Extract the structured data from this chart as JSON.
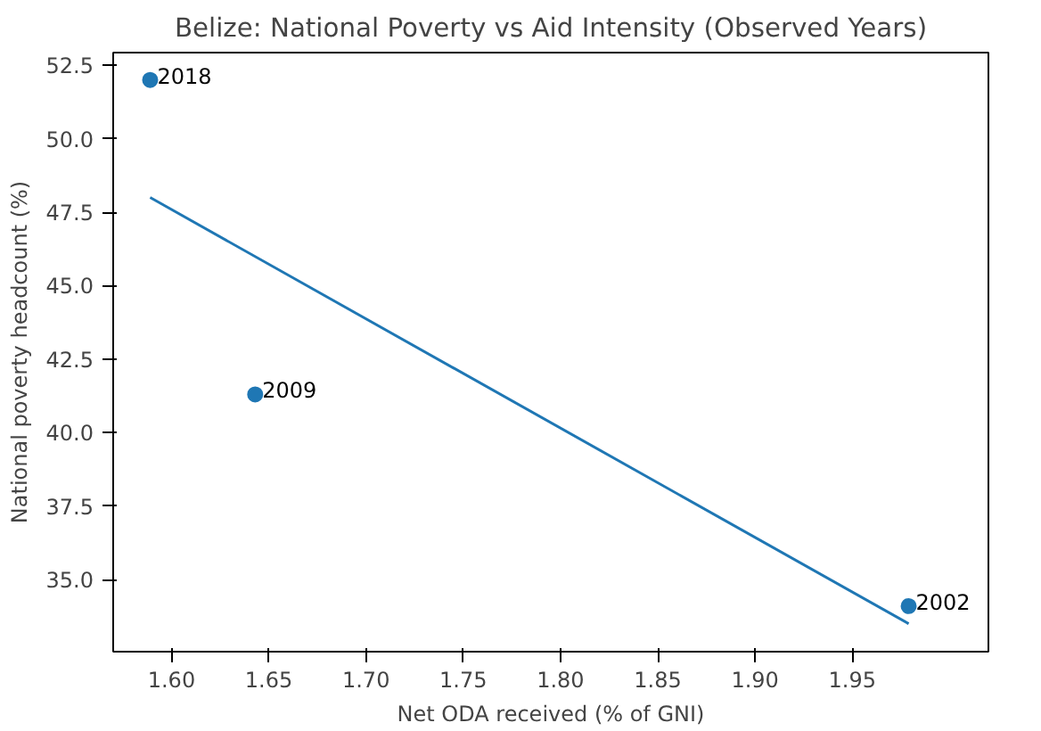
{
  "chart_data": {
    "type": "scatter",
    "title": "Belize: National Poverty vs Aid Intensity (Observed Years)",
    "xlabel": "Net ODA received (% of GNI)",
    "ylabel": "National poverty headcount (%)",
    "x": [
      1.589,
      1.643,
      1.979
    ],
    "series": [
      {
        "color": "#1f77b4",
        "values": [
          52.0,
          41.3,
          34.1
        ],
        "marker": "circle"
      },
      {
        "type": "line",
        "color": "#1f77b4",
        "x": [
          1.589,
          1.979
        ],
        "values": [
          48.0,
          33.5
        ],
        "line_style": "solid"
      }
    ],
    "annotations": [
      {
        "text": "2018",
        "x": 1.589,
        "y": 52.0
      },
      {
        "text": "2009",
        "x": 1.643,
        "y": 41.3
      },
      {
        "text": "2002",
        "x": 1.979,
        "y": 34.1
      }
    ],
    "xlim": [
      1.57,
      2.02
    ],
    "ylim": [
      32.55,
      52.93
    ],
    "xticks": [
      {
        "value": 1.6,
        "label": "1.60"
      },
      {
        "value": 1.65,
        "label": "1.65"
      },
      {
        "value": 1.7,
        "label": "1.70"
      },
      {
        "value": 1.75,
        "label": "1.75"
      },
      {
        "value": 1.8,
        "label": "1.80"
      },
      {
        "value": 1.85,
        "label": "1.85"
      },
      {
        "value": 1.9,
        "label": "1.90"
      },
      {
        "value": 1.95,
        "label": "1.95"
      }
    ],
    "yticks": [
      {
        "value": 35,
        "label": "35.0"
      },
      {
        "value": 37.5,
        "label": "37.5"
      },
      {
        "value": 40,
        "label": "40.0"
      },
      {
        "value": 42.5,
        "label": "42.5"
      },
      {
        "value": 45,
        "label": "45.0"
      },
      {
        "value": 47.5,
        "label": "47.5"
      },
      {
        "value": 50,
        "label": "50.0"
      },
      {
        "value": 52.5,
        "label": "52.5"
      }
    ],
    "grid": false
  }
}
